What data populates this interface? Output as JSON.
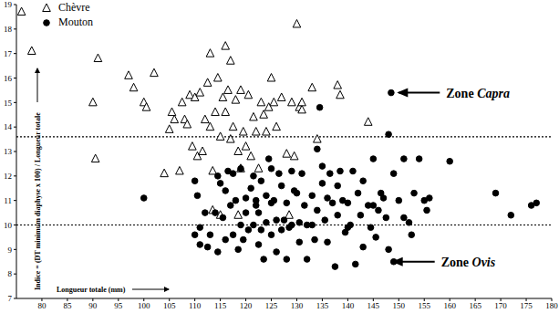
{
  "chart_data": {
    "type": "scatter",
    "xlabel": "Longueur totale (mm)",
    "ylabel": "Indice = (DT minimum diaphyse x 100) / Longueur totale",
    "xlim": [
      75,
      180
    ],
    "xticks": [
      80,
      85,
      90,
      95,
      100,
      105,
      110,
      115,
      120,
      125,
      130,
      135,
      140,
      145,
      150,
      155,
      160,
      165,
      170,
      175,
      180
    ],
    "ylim": [
      7,
      19
    ],
    "yticks": [
      7,
      8,
      9,
      10,
      11,
      12,
      13,
      14,
      15,
      16,
      17,
      18,
      19
    ],
    "legend": "upper left",
    "hlines": [
      13.6,
      10
    ],
    "annotations": [
      {
        "text": "Zone Capra",
        "x": 150,
        "y": 15.4
      },
      {
        "text": "Zone Ovis",
        "x": 149,
        "y": 8.5
      }
    ],
    "series": [
      {
        "name": "Chèvre",
        "color": "#000000",
        "marker": "open_triangle",
        "x": [
          76,
          78,
          90,
          90.5,
          91,
          97,
          98,
          100,
          100.5,
          102,
          104,
          105,
          105.5,
          106,
          107,
          107.5,
          108,
          108.5,
          109,
          109.5,
          110,
          110.5,
          111,
          111.5,
          112,
          112.5,
          113,
          113,
          113.5,
          113.5,
          114,
          114.5,
          115,
          115.5,
          116,
          116,
          116.5,
          117,
          117,
          117.5,
          118,
          118.5,
          119,
          119,
          119.5,
          120,
          120.5,
          121,
          121.5,
          122,
          122.5,
          123,
          123.5,
          124,
          124.5,
          125,
          125.5,
          126,
          127,
          128,
          129,
          129.5,
          130,
          130.5,
          131,
          131,
          133,
          134,
          138,
          138.5,
          144,
          115,
          118.5,
          128.5
        ],
        "y": [
          18.7,
          17.1,
          15.0,
          12.7,
          16.8,
          16.1,
          15.6,
          15.0,
          14.8,
          16.2,
          12.1,
          13.9,
          14.6,
          14.3,
          12.2,
          15.0,
          14.3,
          14.1,
          15.3,
          13.2,
          15.2,
          12.8,
          15.4,
          13.0,
          14.3,
          15.8,
          17.0,
          14.0,
          12.2,
          10.6,
          14.6,
          16.0,
          13.6,
          15.2,
          17.3,
          14.6,
          15.5,
          16.7,
          13.5,
          14.0,
          15.1,
          13.0,
          15.5,
          12.3,
          13.8,
          13.2,
          15.3,
          12.8,
          14.4,
          13.8,
          12.3,
          15.0,
          14.5,
          13.8,
          14.8,
          16.0,
          15.0,
          14.0,
          15.2,
          12.9,
          15.0,
          12.8,
          18.2,
          14.8,
          14.7,
          15.0,
          15.6,
          13.5,
          15.7,
          15.3,
          14.2,
          10.4,
          10.4,
          10.4
        ]
      },
      {
        "name": "Mouton",
        "color": "#000000",
        "marker": "circle",
        "x": [
          100,
          110,
          110.5,
          110,
          111,
          111,
          112,
          112.5,
          113,
          114,
          114.5,
          114.5,
          115,
          115.5,
          116,
          116,
          116.5,
          117,
          117.5,
          117.5,
          118,
          118.5,
          119,
          119,
          119.5,
          120,
          120,
          120.5,
          121,
          121.5,
          121.5,
          122,
          122.5,
          122.5,
          123,
          123,
          123.5,
          124,
          124,
          124.5,
          125,
          125,
          125.5,
          126,
          126,
          126.5,
          127,
          127,
          127.5,
          128,
          128,
          128.5,
          129,
          129,
          129.5,
          130,
          130.5,
          130.5,
          131,
          131.5,
          132,
          132,
          133,
          133.5,
          134,
          134,
          134.5,
          135,
          135,
          135.5,
          136,
          136,
          136.5,
          137,
          137.5,
          138,
          138,
          138.5,
          139,
          139.5,
          140,
          140.5,
          141,
          141.5,
          142,
          142.5,
          143,
          143,
          144,
          144.5,
          145,
          145,
          145.5,
          146,
          146.5,
          147,
          147.5,
          148,
          148,
          148.5,
          149,
          149,
          150,
          151,
          151,
          152,
          152.5,
          153,
          154,
          155,
          155.5,
          156,
          160,
          169,
          172,
          176,
          177,
          125,
          122,
          133,
          140
        ],
        "y": [
          11.1,
          11.8,
          11.2,
          9.6,
          9.9,
          9.2,
          10.5,
          9.1,
          9.6,
          10.5,
          8.9,
          12.0,
          11.7,
          10.3,
          11.4,
          9.4,
          12.2,
          10.8,
          9.6,
          12.1,
          11.0,
          9.0,
          10.0,
          12.3,
          9.4,
          11.1,
          10.5,
          9.8,
          11.5,
          10.0,
          12.0,
          11.0,
          9.2,
          10.5,
          11.8,
          9.8,
          8.6,
          11.2,
          10.1,
          12.7,
          12.3,
          9.6,
          11.0,
          8.9,
          10.2,
          12.1,
          9.8,
          11.6,
          10.2,
          8.6,
          10.9,
          9.9,
          12.2,
          10.0,
          11.4,
          11.3,
          10.1,
          9.3,
          12.1,
          10.8,
          10.0,
          8.6,
          11.2,
          9.4,
          13.1,
          10.6,
          14.8,
          12.4,
          11.7,
          10.2,
          11.1,
          9.3,
          12.1,
          10.9,
          8.3,
          11.6,
          10.4,
          12.2,
          11.0,
          9.7,
          10.9,
          10.0,
          12.2,
          8.4,
          11.3,
          10.4,
          9.1,
          11.8,
          10.8,
          9.9,
          10.8,
          12.7,
          9.5,
          10.6,
          11.3,
          11.1,
          10.3,
          9.0,
          13.7,
          15.4,
          8.5,
          12.1,
          11.0,
          10.3,
          12.7,
          10.1,
          9.6,
          11.3,
          12.7,
          11.0,
          10.6,
          11.1,
          12.6,
          11.3,
          10.4,
          10.8,
          10.9,
          10.9,
          10.8,
          10.0,
          9.9
        ]
      }
    ]
  }
}
